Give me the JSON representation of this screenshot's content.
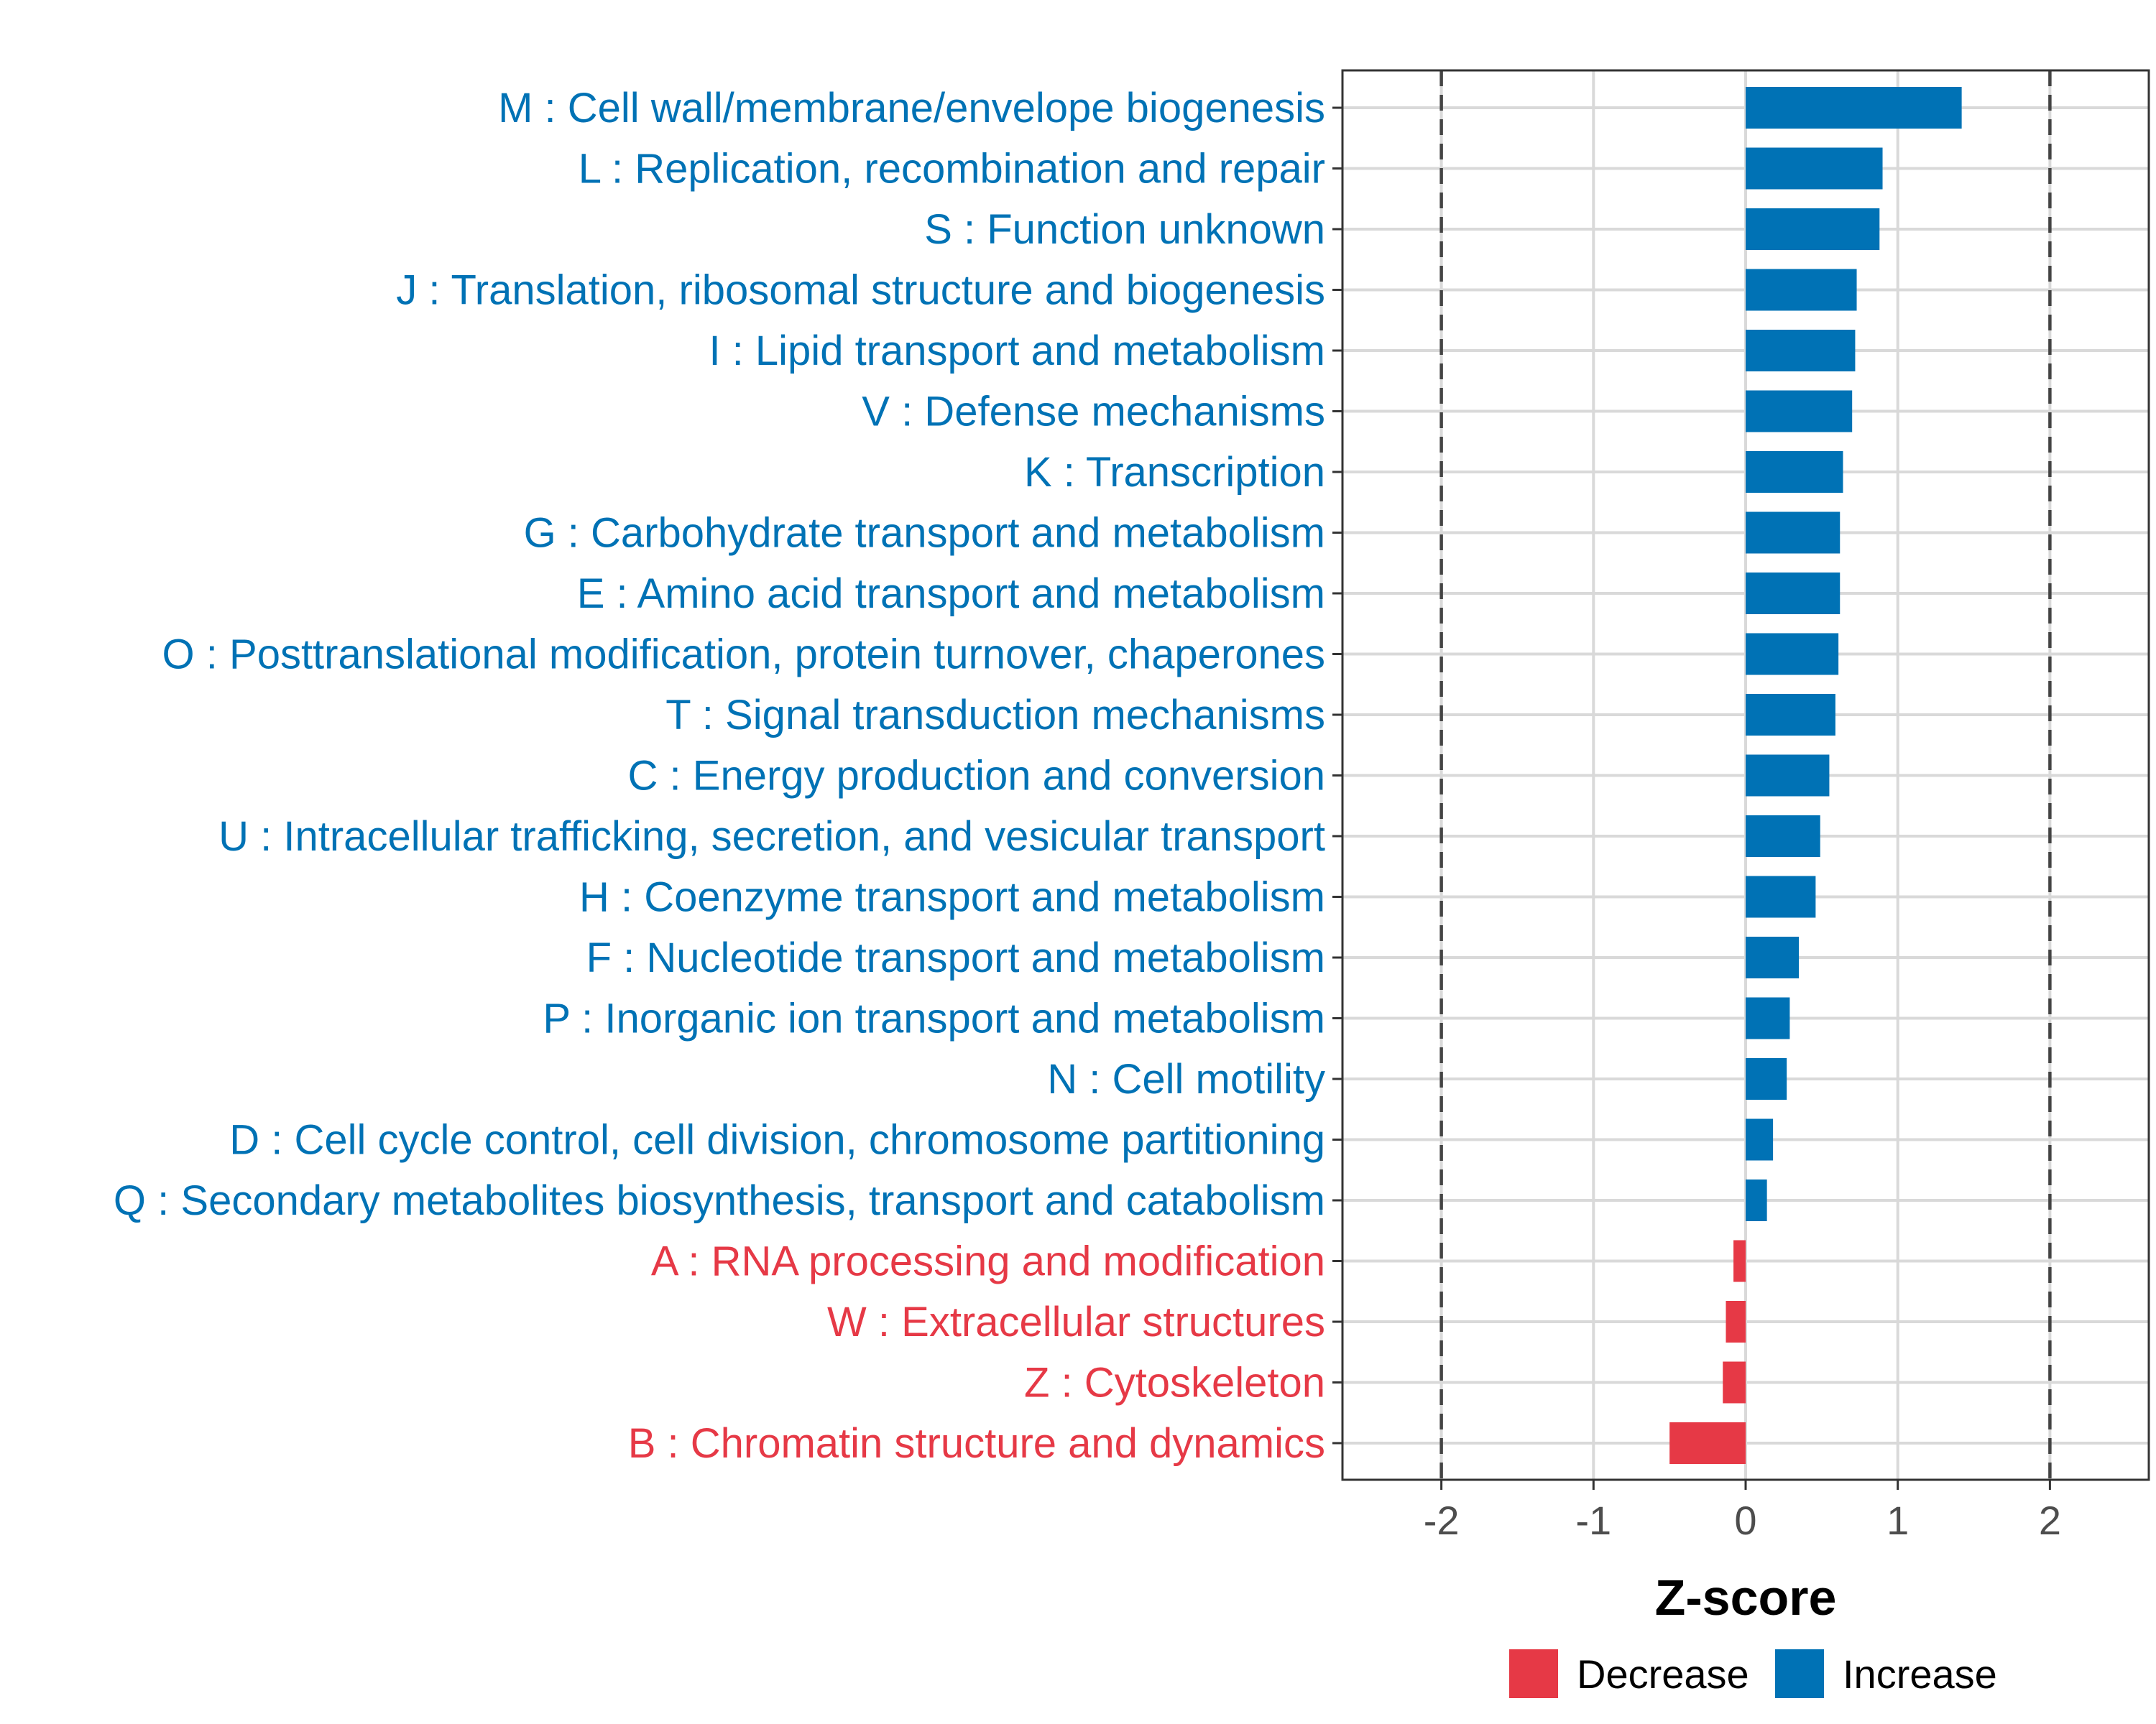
{
  "colors": {
    "increase": "#0072B5",
    "decrease": "#E63946",
    "grid": "#d9d9d9",
    "panel_border": "#333333",
    "threshold": "#444444"
  },
  "chart_data": {
    "type": "bar",
    "orientation": "horizontal",
    "title": "",
    "xlabel": "Z-score",
    "ylabel": "",
    "xlim": [
      -2.65,
      2.65
    ],
    "x_ticks": [
      -2,
      -1,
      0,
      1,
      2
    ],
    "x_tick_labels": [
      "-2",
      "-1",
      "0",
      "1",
      "2"
    ],
    "threshold_lines": [
      -2,
      2
    ],
    "grid": true,
    "categories": [
      "M : Cell wall/membrane/envelope biogenesis",
      "L : Replication, recombination and repair",
      "S : Function unknown",
      "J : Translation, ribosomal structure and biogenesis",
      "I : Lipid transport and metabolism",
      "V : Defense mechanisms",
      "K : Transcription",
      "G : Carbohydrate transport and metabolism",
      "E : Amino acid transport and metabolism",
      "O : Posttranslational modification, protein turnover, chaperones",
      "T : Signal transduction mechanisms",
      "C : Energy production and conversion",
      "U : Intracellular trafficking, secretion, and vesicular transport",
      "H : Coenzyme transport and metabolism",
      "F : Nucleotide transport and metabolism",
      "P : Inorganic ion transport and metabolism",
      "N : Cell motility",
      "D : Cell cycle control, cell division, chromosome partitioning",
      "Q : Secondary metabolites biosynthesis, transport and catabolism",
      "A : RNA processing and modification",
      "W : Extracellular structures",
      "Z : Cytoskeleton",
      "B : Chromatin structure and dynamics"
    ],
    "values": [
      1.42,
      0.9,
      0.88,
      0.73,
      0.72,
      0.7,
      0.64,
      0.62,
      0.62,
      0.61,
      0.59,
      0.55,
      0.49,
      0.46,
      0.35,
      0.29,
      0.27,
      0.18,
      0.14,
      -0.08,
      -0.13,
      -0.15,
      -0.5
    ],
    "directions": [
      "Increase",
      "Increase",
      "Increase",
      "Increase",
      "Increase",
      "Increase",
      "Increase",
      "Increase",
      "Increase",
      "Increase",
      "Increase",
      "Increase",
      "Increase",
      "Increase",
      "Increase",
      "Increase",
      "Increase",
      "Increase",
      "Increase",
      "Decrease",
      "Decrease",
      "Decrease",
      "Decrease"
    ],
    "legend": {
      "position": "bottom",
      "entries": [
        {
          "label": "Decrease",
          "color": "#E63946"
        },
        {
          "label": "Increase",
          "color": "#0072B5"
        }
      ]
    }
  }
}
